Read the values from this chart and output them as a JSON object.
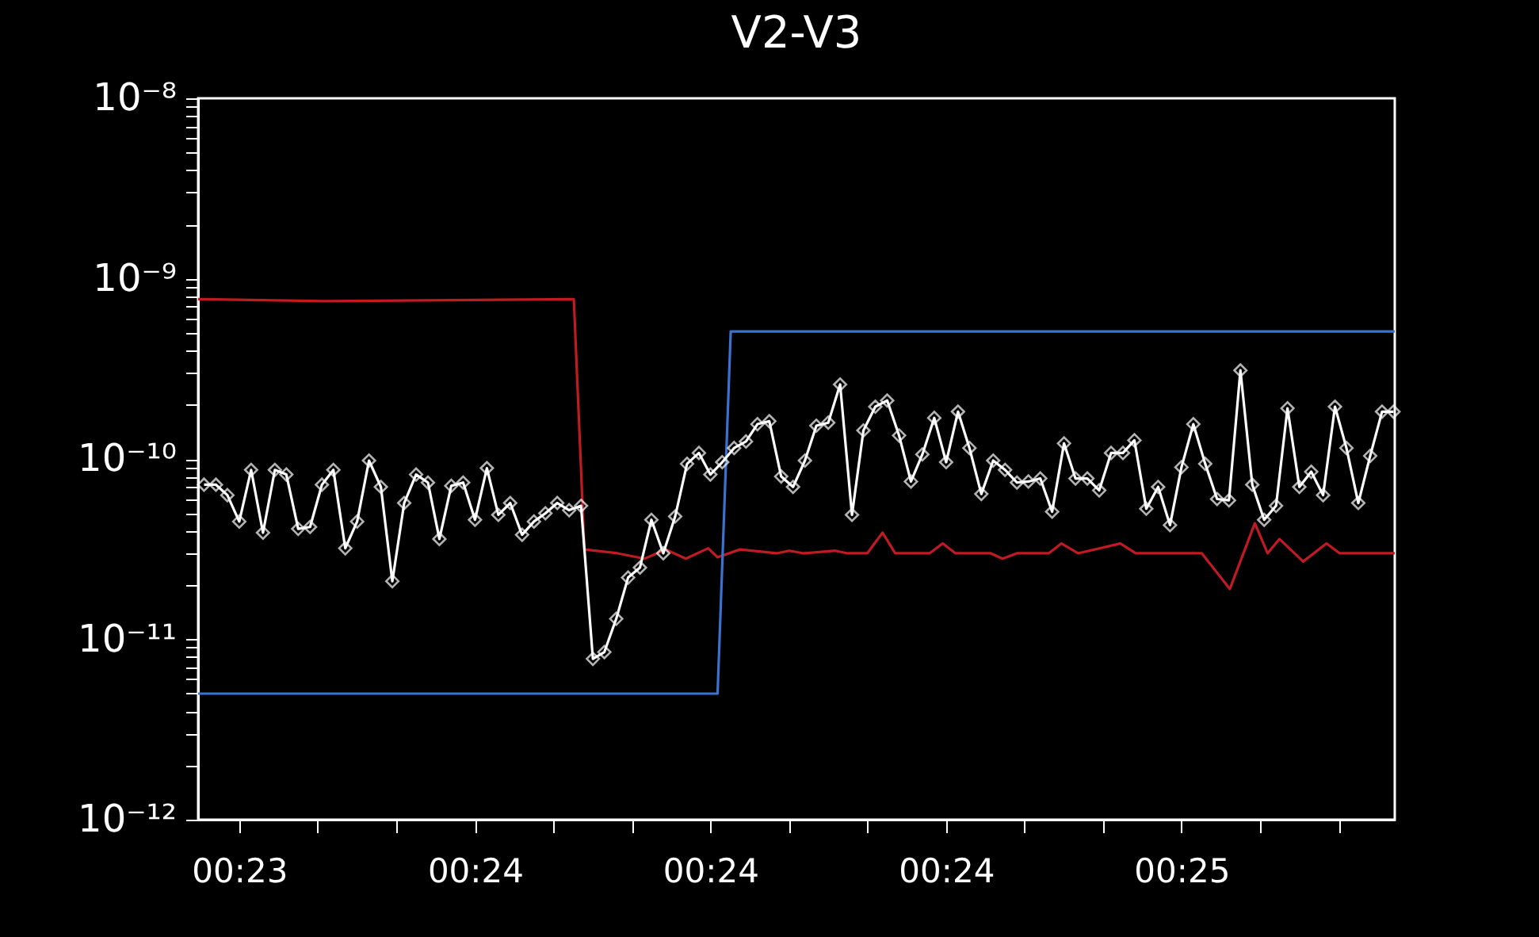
{
  "chart_data": {
    "type": "line",
    "title": "V2-V3",
    "log": "y",
    "line_style": "solid",
    "xlim": [
      0.38792,
      0.41614
    ],
    "ylim": [
      1e-12,
      1e-08
    ],
    "xticks": [
      {
        "value": 0.38889,
        "label": "00:23"
      },
      {
        "value": 0.39074,
        "label": null
      },
      {
        "value": 0.3926,
        "label": null
      },
      {
        "value": 0.39445,
        "label": "00:24"
      },
      {
        "value": 0.3963,
        "label": null
      },
      {
        "value": 0.39815,
        "label": null
      },
      {
        "value": 0.4,
        "label": "00:24"
      },
      {
        "value": 0.40186,
        "label": null
      },
      {
        "value": 0.40371,
        "label": null
      },
      {
        "value": 0.40556,
        "label": "00:24"
      },
      {
        "value": 0.40741,
        "label": null
      },
      {
        "value": 0.40926,
        "label": null
      },
      {
        "value": 0.41111,
        "label": "00:25"
      },
      {
        "value": 0.41297,
        "label": null
      },
      {
        "value": 0.41482,
        "label": null
      }
    ],
    "yticks": [
      {
        "value": 1e-12,
        "label": "10⁻¹²"
      },
      {
        "value": 2e-12,
        "label": null
      },
      {
        "value": 3e-12,
        "label": null
      },
      {
        "value": 4e-12,
        "label": null
      },
      {
        "value": 5e-12,
        "label": null
      },
      {
        "value": 6e-12,
        "label": null
      },
      {
        "value": 7e-12,
        "label": null
      },
      {
        "value": 8e-12,
        "label": null
      },
      {
        "value": 9e-12,
        "label": null
      },
      {
        "value": 1e-11,
        "label": "10⁻¹¹"
      },
      {
        "value": 2e-11,
        "label": null
      },
      {
        "value": 3e-11,
        "label": null
      },
      {
        "value": 4e-11,
        "label": null
      },
      {
        "value": 5e-11,
        "label": null
      },
      {
        "value": 6e-11,
        "label": null
      },
      {
        "value": 7e-11,
        "label": null
      },
      {
        "value": 8e-11,
        "label": null
      },
      {
        "value": 9e-11,
        "label": null
      },
      {
        "value": 1e-10,
        "label": "10⁻¹⁰"
      },
      {
        "value": 2e-10,
        "label": null
      },
      {
        "value": 3e-10,
        "label": null
      },
      {
        "value": 4e-10,
        "label": null
      },
      {
        "value": 5e-10,
        "label": null
      },
      {
        "value": 6e-10,
        "label": null
      },
      {
        "value": 7e-10,
        "label": null
      },
      {
        "value": 8e-10,
        "label": null
      },
      {
        "value": 9e-10,
        "label": null
      },
      {
        "value": 1e-09,
        "label": "10⁻⁹"
      },
      {
        "value": 2e-09,
        "label": null
      },
      {
        "value": 3e-09,
        "label": null
      },
      {
        "value": 4e-09,
        "label": null
      },
      {
        "value": 5e-09,
        "label": null
      },
      {
        "value": 6e-09,
        "label": null
      },
      {
        "value": 7e-09,
        "label": null
      },
      {
        "value": 8e-09,
        "label": null
      },
      {
        "value": 9e-09,
        "label": null
      },
      {
        "value": 1e-08,
        "label": "10⁻⁸"
      }
    ],
    "series": [
      {
        "color": "#c01a22",
        "marker": "none",
        "x": [
          0.38792,
          0.39089,
          0.39678,
          0.39703,
          0.39781,
          0.39845,
          0.39895,
          0.39942,
          0.39995,
          0.40017,
          0.4007,
          0.40156,
          0.40186,
          0.4022,
          0.40295,
          0.40323,
          0.4037,
          0.40406,
          0.40436,
          0.40517,
          0.40548,
          0.40578,
          0.40661,
          0.40689,
          0.40723,
          0.40798,
          0.40828,
          0.40867,
          0.40967,
          0.41003,
          0.41159,
          0.41225,
          0.41284,
          0.41314,
          0.41342,
          0.41398,
          0.41453,
          0.41484,
          0.41614
        ],
        "values": [
          7.7e-10,
          7.5e-10,
          7.7e-10,
          3.15e-11,
          3e-11,
          2.8e-11,
          3.15e-11,
          2.8e-11,
          3.2e-11,
          2.85e-11,
          3.15e-11,
          3e-11,
          3.1e-11,
          3e-11,
          3.1e-11,
          3e-11,
          3e-11,
          3.9e-11,
          3e-11,
          3e-11,
          3.4e-11,
          3e-11,
          3e-11,
          2.8e-11,
          3e-11,
          3e-11,
          3.4e-11,
          3e-11,
          3.4e-11,
          3e-11,
          3e-11,
          1.9e-11,
          4.4e-11,
          3e-11,
          3.6e-11,
          2.7e-11,
          3.4e-11,
          3e-11,
          3e-11
        ]
      },
      {
        "color": "#3a72d0",
        "marker": "none",
        "x": [
          0.38792,
          0.40017,
          0.40048,
          0.41614
        ],
        "values": [
          5e-12,
          5e-12,
          5.1e-10,
          5.1e-10
        ]
      },
      {
        "color": "#ffffff",
        "marker": "diamond",
        "x": [
          0.38806,
          0.38834,
          0.38861,
          0.38889,
          0.38917,
          0.38945,
          0.38973,
          0.39,
          0.39028,
          0.39056,
          0.39084,
          0.39111,
          0.39139,
          0.39167,
          0.39195,
          0.39223,
          0.3925,
          0.39278,
          0.39306,
          0.39334,
          0.39361,
          0.39389,
          0.39417,
          0.39445,
          0.39473,
          0.395,
          0.39528,
          0.39556,
          0.39584,
          0.39611,
          0.39639,
          0.39667,
          0.39695,
          0.39723,
          0.3975,
          0.39778,
          0.39806,
          0.39834,
          0.39861,
          0.39889,
          0.39917,
          0.39945,
          0.39973,
          0.4,
          0.40028,
          0.40056,
          0.40084,
          0.40111,
          0.40139,
          0.40167,
          0.40195,
          0.40223,
          0.4025,
          0.40278,
          0.40306,
          0.40334,
          0.40361,
          0.40389,
          0.40417,
          0.40445,
          0.40473,
          0.405,
          0.40528,
          0.40556,
          0.40584,
          0.40611,
          0.40639,
          0.40667,
          0.40695,
          0.40723,
          0.4075,
          0.40778,
          0.40806,
          0.40834,
          0.40861,
          0.40889,
          0.40917,
          0.40945,
          0.40973,
          0.41,
          0.41028,
          0.41056,
          0.41084,
          0.41111,
          0.41139,
          0.41167,
          0.41195,
          0.41223,
          0.4125,
          0.41278,
          0.41306,
          0.41334,
          0.41361,
          0.41389,
          0.41417,
          0.41445,
          0.41473,
          0.415,
          0.41528,
          0.41556,
          0.41584,
          0.41611
        ],
        "values": [
          7.2e-11,
          7.2e-11,
          6.3e-11,
          4.5e-11,
          8.7e-11,
          3.9e-11,
          8.7e-11,
          8.2e-11,
          4.1e-11,
          4.2e-11,
          7.2e-11,
          8.7e-11,
          3.2e-11,
          4.5e-11,
          9.8e-11,
          7e-11,
          2.1e-11,
          5.7e-11,
          8.2e-11,
          7.4e-11,
          3.6e-11,
          7.1e-11,
          7.4e-11,
          4.6e-11,
          8.9e-11,
          4.9e-11,
          5.7e-11,
          3.8e-11,
          4.5e-11,
          5e-11,
          5.7e-11,
          5.2e-11,
          5.5e-11,
          7.8e-12,
          8.5e-12,
          1.3e-11,
          2.2e-11,
          2.5e-11,
          4.6e-11,
          3e-11,
          4.8e-11,
          9.4e-11,
          1.08e-10,
          8.2e-11,
          9.6e-11,
          1.15e-10,
          1.25e-10,
          1.56e-10,
          1.62e-10,
          8e-11,
          7e-11,
          9.8e-11,
          1.53e-10,
          1.59e-10,
          2.59e-10,
          4.9e-11,
          1.44e-10,
          1.95e-10,
          2.11e-10,
          1.35e-10,
          7.5e-11,
          1.06e-10,
          1.69e-10,
          9.6e-11,
          1.83e-10,
          1.15e-10,
          6.4e-11,
          9.8e-11,
          8.7e-11,
          7.4e-11,
          7.5e-11,
          7.8e-11,
          5.1e-11,
          1.22e-10,
          7.8e-11,
          7.8e-11,
          6.7e-11,
          1.08e-10,
          1.08e-10,
          1.27e-10,
          5.3e-11,
          7e-11,
          4.3e-11,
          9e-11,
          1.56e-10,
          9.4e-11,
          6e-11,
          5.9e-11,
          3.1e-10,
          7.2e-11,
          4.6e-11,
          5.5e-11,
          1.91e-10,
          7e-11,
          8.5e-11,
          6.3e-11,
          1.95e-10,
          1.15e-10,
          5.7e-11,
          1.04e-10,
          1.83e-10,
          1.83e-10
        ]
      }
    ]
  }
}
